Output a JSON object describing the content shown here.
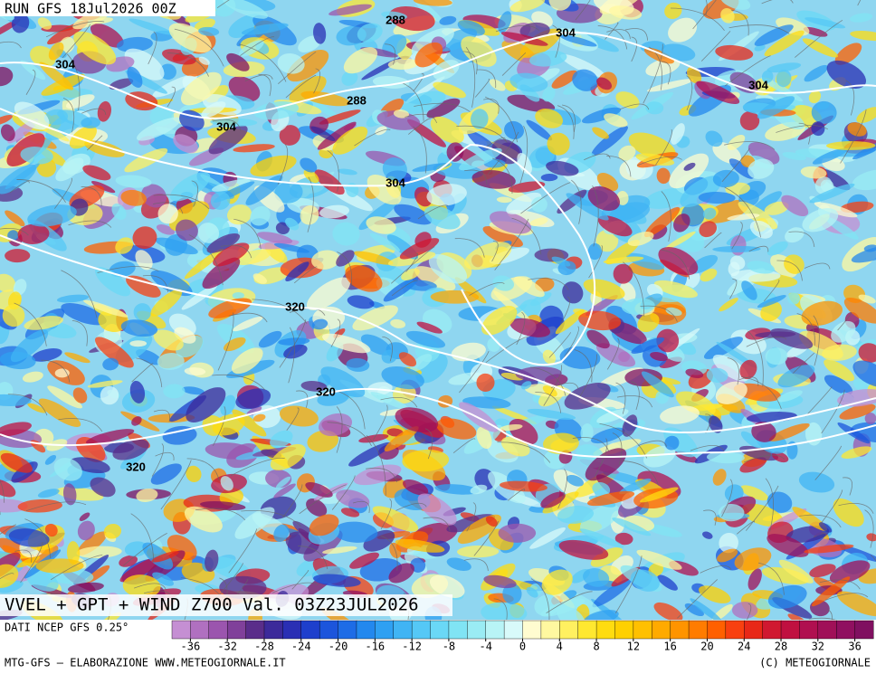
{
  "header": {
    "run": "RUN GFS 18Jul2026 00Z"
  },
  "map": {
    "title": "VVEL + GPT + WIND Z700 Val. 03Z23JUL2026",
    "contour_labels": [
      "288",
      "304",
      "304",
      "304",
      "288",
      "304",
      "320",
      "304",
      "320",
      "320"
    ]
  },
  "colorbar": {
    "source": "DATI NCEP GFS 0.25°",
    "lim": [
      -38,
      38
    ],
    "colors": [
      "#c58fd3",
      "#b070c0",
      "#9b55ae",
      "#80409a",
      "#5a2d8a",
      "#3c2a9a",
      "#2a2fb4",
      "#1e3fcc",
      "#1c55dc",
      "#1e6ce6",
      "#2388ee",
      "#2fa0f2",
      "#40b4f4",
      "#55c8f6",
      "#6ad8f6",
      "#80e4f4",
      "#9aecf4",
      "#b8f4f6",
      "#d8fafa",
      "#fffcd0",
      "#fff8a0",
      "#fff060",
      "#ffe830",
      "#ffdc10",
      "#ffd000",
      "#ffc000",
      "#ffaa00",
      "#ff9400",
      "#ff7c00",
      "#ff6000",
      "#f84010",
      "#e82818",
      "#d01830",
      "#c01040",
      "#b01050",
      "#a01058",
      "#901060",
      "#801060"
    ],
    "ticks": [
      -36,
      -32,
      -28,
      -24,
      -20,
      -16,
      -12,
      -8,
      -4,
      0,
      4,
      8,
      12,
      16,
      20,
      24,
      28,
      32,
      36
    ]
  },
  "footer": {
    "left": "MTG-GFS — ELABORAZIONE WWW.METEOGIORNALE.IT",
    "right": "(C) METEOGIORNALE"
  }
}
